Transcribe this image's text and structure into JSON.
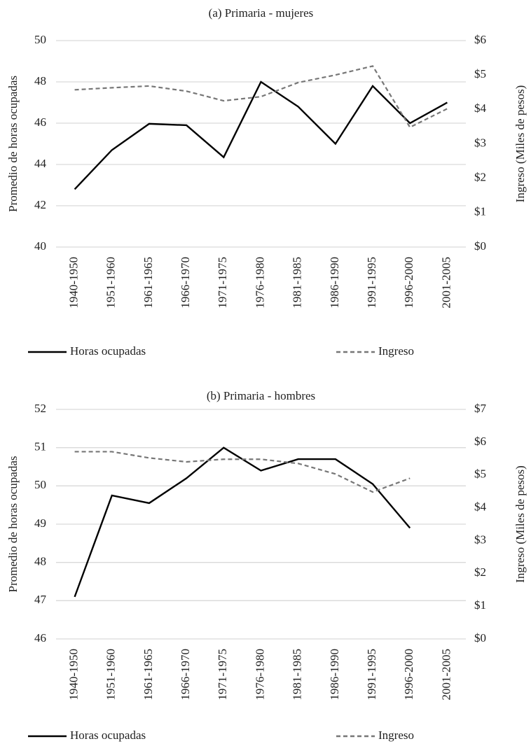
{
  "chart_data": [
    {
      "type": "line",
      "title": "(a) Primaria - mujeres",
      "categories": [
        "1940-1950",
        "1951-1960",
        "1961-1965",
        "1966-1970",
        "1971-1975",
        "1976-1980",
        "1981-1985",
        "1986-1990",
        "1991-1995",
        "1996-2000",
        "2001-2005"
      ],
      "ylabel": "Promedio de horas ocupadas",
      "y2label": "Ingreso (Miles de pesos)",
      "ylim": [
        40,
        50
      ],
      "yticks": [
        40,
        42,
        44,
        46,
        48,
        50
      ],
      "y2lim": [
        0,
        6
      ],
      "y2ticks": [
        {
          "value": 0,
          "label": "$0"
        },
        {
          "value": 1,
          "label": "$1"
        },
        {
          "value": 2,
          "label": "$2"
        },
        {
          "value": 3,
          "label": "$3"
        },
        {
          "value": 4,
          "label": "$4"
        },
        {
          "value": 5,
          "label": "$5"
        },
        {
          "value": 6,
          "label": "$6"
        }
      ],
      "grid": true,
      "series": [
        {
          "name": "Horas ocupadas",
          "color": "#000000",
          "linestyle": "solid",
          "values": [
            42.8,
            44.7,
            45.97,
            45.9,
            44.35,
            48.0,
            46.8,
            45.0,
            47.8,
            46.0,
            47.0
          ]
        },
        {
          "name": "Ingreso",
          "color": "#777777",
          "linestyle": "dashed",
          "axis": "y2",
          "values": [
            4.57,
            4.63,
            4.68,
            4.53,
            4.25,
            4.37,
            4.78,
            5.0,
            5.26,
            3.48,
            4.02
          ]
        }
      ]
    },
    {
      "type": "line",
      "title": "(b) Primaria - hombres",
      "categories": [
        "1940-1950",
        "1951-1960",
        "1961-1965",
        "1966-1970",
        "1971-1975",
        "1976-1980",
        "1981-1985",
        "1986-1990",
        "1991-1995",
        "1996-2000",
        "2001-2005"
      ],
      "ylabel": "Promedio de horas ocupadas",
      "y2label": "Ingreso (Miles de pesos)",
      "ylim": [
        46,
        52
      ],
      "yticks": [
        46,
        47,
        48,
        49,
        50,
        51,
        52
      ],
      "y2lim": [
        0,
        7
      ],
      "y2ticks": [
        {
          "value": 0,
          "label": "$0"
        },
        {
          "value": 1,
          "label": "$1"
        },
        {
          "value": 2,
          "label": "$2"
        },
        {
          "value": 3,
          "label": "$3"
        },
        {
          "value": 4,
          "label": "$4"
        },
        {
          "value": 5,
          "label": "$5"
        },
        {
          "value": 6,
          "label": "$6"
        },
        {
          "value": 7,
          "label": "$7"
        }
      ],
      "grid": true,
      "series": [
        {
          "name": "Horas ocupadas",
          "color": "#000000",
          "linestyle": "solid",
          "values": [
            47.1,
            49.75,
            49.55,
            50.2,
            51.0,
            50.4,
            50.7,
            50.7,
            50.05,
            48.9,
            null
          ]
        },
        {
          "name": "Ingreso",
          "color": "#777777",
          "linestyle": "dashed",
          "axis": "y2",
          "values": [
            5.71,
            5.71,
            5.52,
            5.4,
            5.48,
            5.48,
            5.35,
            5.03,
            4.48,
            4.9,
            null
          ]
        }
      ]
    }
  ]
}
